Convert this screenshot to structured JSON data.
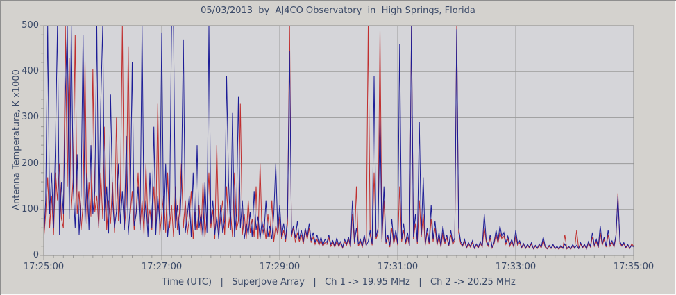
{
  "window": {
    "background": "#d4d2ce",
    "plot_background": "#d5d5d9",
    "grid_color": "#9b9b9b",
    "frame_color": "#8a8a8a",
    "text_color": "#3b4a68"
  },
  "chart_data": {
    "type": "line",
    "title": "05/03/2013  by  AJ4CO Observatory  in  High Springs, Florida",
    "xlabel": "Time (UTC)   |   SuperJove Array   |   Ch 1 -> 19.95 MHz   |   Ch 2 -> 20.25 MHz",
    "ylabel": "Antenna Temperature, K x1000",
    "x_tick_labels": [
      "17:25:00",
      "17:27:00",
      "17:29:00",
      "17:31:00",
      "17:33:00",
      "17:35:00"
    ],
    "y_ticks": [
      0,
      100,
      200,
      300,
      400,
      500
    ],
    "ylim": [
      0,
      500
    ],
    "x_total_seconds": 600,
    "x_step_seconds": 2,
    "x_minor_tick_seconds": 10,
    "y_minor_tick_interval": 20,
    "grid": "on",
    "legend": "none",
    "series": [
      {
        "name": "Ch 1 19.95 MHz",
        "color": "#c02f2f",
        "values": [
          35,
          90,
          170,
          60,
          130,
          45,
          180,
          120,
          200,
          80,
          60,
          500,
          150,
          430,
          100,
          170,
          480,
          90,
          140,
          55,
          110,
          425,
          70,
          160,
          85,
          405,
          95,
          130,
          60,
          180,
          80,
          280,
          55,
          120,
          70,
          160,
          50,
          300,
          75,
          130,
          500,
          60,
          110,
          455,
          90,
          140,
          55,
          95,
          180,
          60,
          120,
          45,
          200,
          70,
          100,
          55,
          150,
          65,
          330,
          45,
          90,
          130,
          50,
          180,
          60,
          110,
          40,
          150,
          55,
          90,
          200,
          60,
          120,
          45,
          80,
          140,
          35,
          95,
          55,
          110,
          45,
          160,
          40,
          85,
          180,
          60,
          100,
          35,
          240,
          50,
          80,
          120,
          45,
          150,
          60,
          95,
          40,
          180,
          55,
          75,
          330,
          45,
          90,
          35,
          120,
          50,
          80,
          40,
          150,
          35,
          200,
          45,
          70,
          35,
          90,
          40,
          120,
          30,
          65,
          45,
          85,
          35,
          55,
          30,
          70,
          500,
          40,
          60,
          28,
          50,
          30,
          45,
          25,
          55,
          35,
          60,
          28,
          40,
          24,
          35,
          22,
          32,
          20,
          28,
          24,
          38,
          20,
          28,
          18,
          30,
          20,
          26,
          16,
          30,
          22,
          35,
          18,
          90,
          25,
          150,
          20,
          30,
          18,
          40,
          20,
          500,
          45,
          22,
          180,
          35,
          50,
          490,
          30,
          120,
          25,
          40,
          18,
          60,
          25,
          45,
          22,
          150,
          30,
          55,
          24,
          40,
          20,
          500,
          35,
          70,
          25,
          120,
          40,
          90,
          22,
          50,
          24,
          80,
          30,
          60,
          22,
          40,
          18,
          50,
          25,
          38,
          20,
          45,
          24,
          32,
          500,
          50,
          25,
          20,
          30,
          16,
          24,
          18,
          28,
          15,
          22,
          16,
          26,
          18,
          60,
          30,
          20,
          38,
          16,
          25,
          45,
          26,
          50,
          35,
          42,
          24,
          36,
          20,
          30,
          18,
          42,
          22,
          28,
          16,
          24,
          15,
          22,
          16,
          25,
          14,
          20,
          15,
          22,
          16,
          32,
          18,
          14,
          20,
          15,
          22,
          14,
          18,
          13,
          20,
          15,
          45,
          14,
          18,
          13,
          22,
          15,
          55,
          14,
          25,
          16,
          22,
          14,
          26,
          18,
          40,
          20,
          30,
          16,
          50,
          22,
          35,
          18,
          45,
          20,
          28,
          18,
          40,
          135,
          26,
          20,
          25,
          16,
          22,
          15,
          25,
          20
        ]
      },
      {
        "name": "Ch 2 20.25 MHz",
        "color": "#1c1c96",
        "values": [
          40,
          120,
          500,
          90,
          180,
          60,
          250,
          500,
          45,
          160,
          90,
          350,
          500,
          80,
          500,
          150,
          60,
          220,
          45,
          130,
          480,
          70,
          180,
          55,
          240,
          90,
          140,
          500,
          65,
          330,
          500,
          75,
          150,
          48,
          350,
          120,
          60,
          95,
          200,
          70,
          140,
          55,
          260,
          45,
          110,
          420,
          65,
          90,
          150,
          55,
          500,
          70,
          120,
          40,
          180,
          60,
          280,
          45,
          130,
          70,
          485,
          55,
          200,
          40,
          90,
          500,
          500,
          60,
          110,
          45,
          150,
          470,
          50,
          85,
          130,
          40,
          180,
          55,
          240,
          60,
          90,
          40,
          160,
          50,
          500,
          70,
          120,
          45,
          85,
          35,
          110,
          50,
          75,
          390,
          160,
          55,
          310,
          40,
          90,
          345,
          60,
          120,
          35,
          70,
          45,
          95,
          40,
          140,
          55,
          85,
          35,
          75,
          45,
          120,
          40,
          65,
          35,
          90,
          200,
          50,
          110,
          40,
          70,
          35,
          85,
          445,
          45,
          65,
          38,
          75,
          35,
          55,
          30,
          60,
          40,
          70,
          32,
          50,
          28,
          45,
          25,
          40,
          22,
          35,
          28,
          45,
          24,
          32,
          20,
          38,
          22,
          30,
          18,
          35,
          25,
          40,
          20,
          120,
          28,
          60,
          24,
          35,
          20,
          45,
          22,
          30,
          55,
          25,
          390,
          40,
          60,
          300,
          35,
          150,
          28,
          45,
          22,
          80,
          30,
          55,
          25,
          460,
          35,
          70,
          28,
          50,
          22,
          500,
          40,
          90,
          30,
          290,
          45,
          170,
          25,
          60,
          28,
          110,
          35,
          75,
          25,
          50,
          20,
          65,
          30,
          45,
          22,
          55,
          28,
          38,
          492,
          60,
          30,
          22,
          35,
          18,
          28,
          20,
          32,
          16,
          25,
          18,
          30,
          20,
          90,
          35,
          22,
          45,
          18,
          28,
          55,
          30,
          65,
          40,
          50,
          28,
          42,
          24,
          35,
          20,
          55,
          25,
          32,
          18,
          26,
          16,
          24,
          18,
          28,
          15,
          22,
          16,
          25,
          18,
          40,
          20,
          15,
          22,
          16,
          24,
          15,
          20,
          14,
          22,
          16,
          25,
          15,
          20,
          14,
          24,
          16,
          22,
          15,
          28,
          18,
          24,
          15,
          30,
          20,
          50,
          22,
          35,
          18,
          65,
          25,
          40,
          20,
          55,
          24,
          32,
          20,
          45,
          128,
          30,
          22,
          28,
          18,
          24,
          16,
          22,
          18
        ]
      }
    ]
  }
}
